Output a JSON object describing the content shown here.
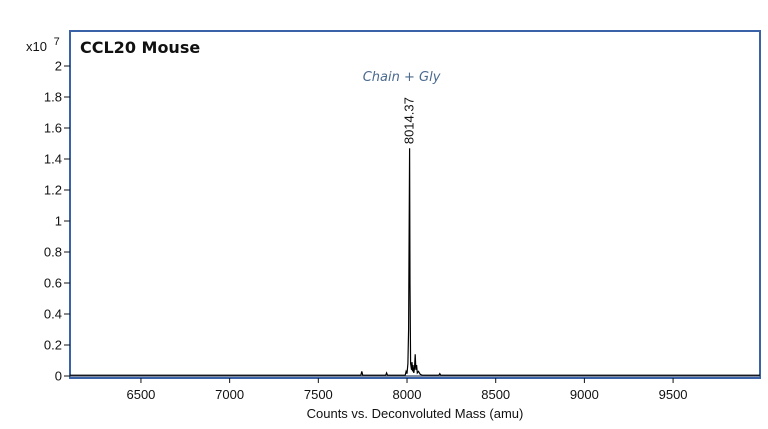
{
  "chart_data": {
    "type": "line",
    "title": "CCL20 Mouse",
    "xlabel": "Counts vs. Deconvoluted Mass (amu)",
    "ylabel": "",
    "y_multiplier": "x10",
    "y_exponent": "7",
    "xlim": [
      6100,
      9990
    ],
    "ylim": [
      0,
      2.1
    ],
    "x_ticks": [
      6500,
      7000,
      7500,
      8000,
      8500,
      9000,
      9500
    ],
    "y_ticks": [
      0,
      0.2,
      0.4,
      0.6,
      0.8,
      1,
      1.2,
      1.4,
      1.6,
      1.8,
      2
    ],
    "y_tick_labels": [
      "0",
      "0.2",
      "0.4",
      "0.6",
      "0.8",
      "1",
      "1.2",
      "1.4",
      "1.6",
      "1.8",
      "2"
    ],
    "annotation": "Chain + Gly",
    "peak_label": "8014.37",
    "series": [
      {
        "x": [
          6100,
          7740,
          7745,
          7750,
          7755,
          7880,
          7885,
          7890,
          7990,
          7995,
          8000,
          8005,
          8009,
          8012,
          8014.37,
          8017,
          8020,
          8025,
          8028,
          8031,
          8034,
          8038,
          8042,
          8046,
          8050,
          8054,
          8058,
          8065,
          8075,
          8085,
          8180,
          8185,
          8190,
          9990
        ],
        "values": [
          0.005,
          0.005,
          0.03,
          0.005,
          0.005,
          0.005,
          0.02,
          0.005,
          0.005,
          0.03,
          0.015,
          0.08,
          0.3,
          0.9,
          1.47,
          0.6,
          0.08,
          0.04,
          0.09,
          0.03,
          0.07,
          0.02,
          0.05,
          0.14,
          0.04,
          0.07,
          0.02,
          0.03,
          0.01,
          0.005,
          0.005,
          0.015,
          0.005,
          0.005
        ],
        "color": "#000000"
      }
    ],
    "frame_color": "#3a62a8",
    "grid": false
  }
}
